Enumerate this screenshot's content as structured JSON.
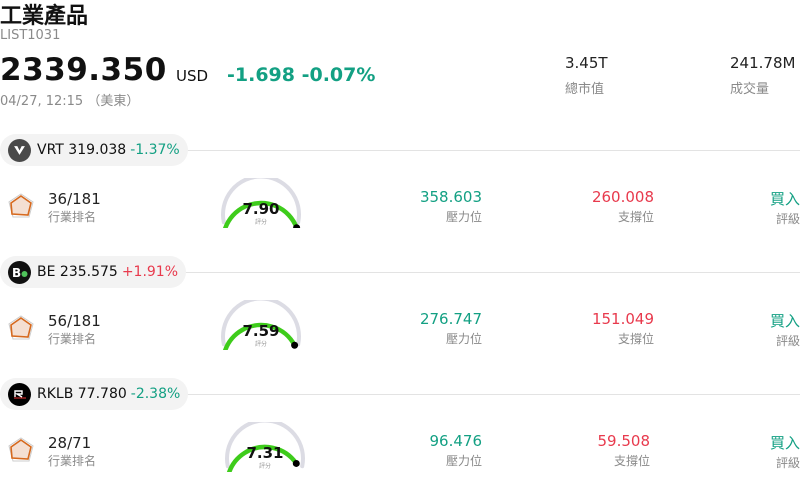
{
  "header": {
    "title": "工業產品",
    "code": "LIST1031",
    "price": "2339.350",
    "currency": "USD",
    "change": "-1.698 -0.07%",
    "time": "04/27, 12:15 （美東）",
    "market_cap_value": "3.45T",
    "market_cap_label": "總市值",
    "volume_value": "241.78M",
    "volume_label": "成交量"
  },
  "colors": {
    "up": "#e83a4d",
    "down": "#13a083",
    "gauge": "#3ecc1b"
  },
  "stocks": [
    {
      "ticker": "VRT",
      "price": "319.038",
      "change": "-1.37%",
      "direction": "down",
      "rank": "36/181",
      "rank_label": "行業排名",
      "score": "7.90",
      "score_label": "評分",
      "score_fraction": 0.79,
      "resistance": "358.603",
      "resistance_label": "壓力位",
      "support": "260.008",
      "support_label": "支撐位",
      "rating": "買入",
      "rating_label": "評級"
    },
    {
      "ticker": "BE",
      "price": "235.575",
      "change": "+1.91%",
      "direction": "up",
      "rank": "56/181",
      "rank_label": "行業排名",
      "score": "7.59",
      "score_label": "評分",
      "score_fraction": 0.759,
      "resistance": "276.747",
      "resistance_label": "壓力位",
      "support": "151.049",
      "support_label": "支撐位",
      "rating": "買入",
      "rating_label": "評級"
    },
    {
      "ticker": "RKLB",
      "price": "77.780",
      "change": "-2.38%",
      "direction": "down",
      "rank": "28/71",
      "rank_label": "行業排名",
      "score": "7.31",
      "score_label": "評分",
      "score_fraction": 0.731,
      "resistance": "96.476",
      "resistance_label": "壓力位",
      "support": "59.508",
      "support_label": "支撐位",
      "rating": "買入",
      "rating_label": "評級"
    }
  ]
}
